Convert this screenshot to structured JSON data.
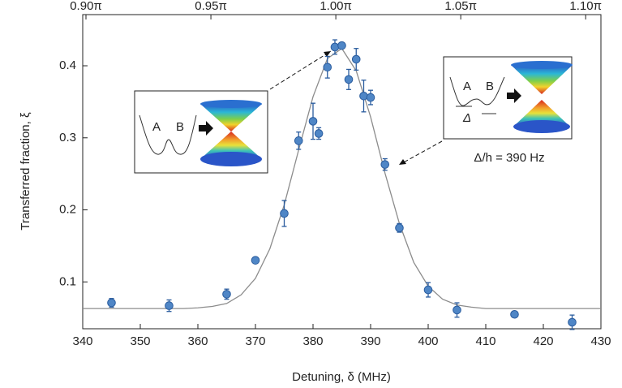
{
  "chart_data": {
    "type": "scatter",
    "xlabel": "Detuning, δ (MHz)",
    "ylabel": "Transferred fraction, ξ",
    "xlim": [
      340,
      430
    ],
    "xticks": [
      340,
      350,
      360,
      370,
      380,
      390,
      400,
      410,
      420,
      430
    ],
    "x2lim": [
      0.8987,
      1.1061
    ],
    "x2ticks": [
      {
        "value": 0.9,
        "label": "0.90π"
      },
      {
        "value": 0.95,
        "label": "0.95π"
      },
      {
        "value": 1.0,
        "label": "1.00π"
      },
      {
        "value": 1.05,
        "label": "1.05π"
      },
      {
        "value": 1.1,
        "label": "1.10π"
      }
    ],
    "ylim": [
      0.035,
      0.471
    ],
    "yticks": [
      0.1,
      0.2,
      0.3,
      0.4
    ],
    "series": [
      {
        "type": "scatter",
        "color": "#4f86c6",
        "x": [
          345,
          355,
          365,
          370,
          375,
          377.5,
          380,
          381,
          382.5,
          383.8,
          385,
          386.2,
          387.5,
          388.8,
          390,
          392.5,
          395,
          400,
          405,
          415,
          425
        ],
        "values": [
          0.071,
          0.067,
          0.083,
          0.13,
          0.195,
          0.296,
          0.323,
          0.306,
          0.398,
          0.426,
          0.428,
          0.381,
          0.409,
          0.358,
          0.356,
          0.263,
          0.175,
          0.089,
          0.061,
          0.055,
          0.044
        ],
        "errors": [
          0.006,
          0.008,
          0.007,
          0.004,
          0.018,
          0.012,
          0.025,
          0.008,
          0.015,
          0.01,
          0.004,
          0.014,
          0.015,
          0.022,
          0.01,
          0.008,
          0.006,
          0.01,
          0.01,
          0.004,
          0.01
        ]
      },
      {
        "type": "line",
        "color": "#8c8c8c",
        "x": [
          340,
          345,
          350,
          355,
          357.5,
          360,
          362.5,
          365,
          367.5,
          370,
          372.5,
          375,
          377.5,
          380,
          382.5,
          385,
          387.5,
          390,
          392.5,
          395,
          397.5,
          400,
          402.5,
          405,
          407.5,
          410,
          415,
          420,
          425,
          430
        ],
        "values": [
          0.063,
          0.063,
          0.063,
          0.063,
          0.063,
          0.064,
          0.066,
          0.07,
          0.082,
          0.105,
          0.146,
          0.207,
          0.283,
          0.357,
          0.41,
          0.424,
          0.393,
          0.329,
          0.251,
          0.181,
          0.127,
          0.094,
          0.076,
          0.068,
          0.065,
          0.063,
          0.063,
          0.063,
          0.063,
          0.063
        ]
      }
    ],
    "insets": [
      {
        "labels": [
          "A",
          "B"
        ]
      },
      {
        "labels": [
          "A",
          "B",
          "Δ"
        ]
      }
    ],
    "annotation": "Δ/h = 390 Hz"
  }
}
